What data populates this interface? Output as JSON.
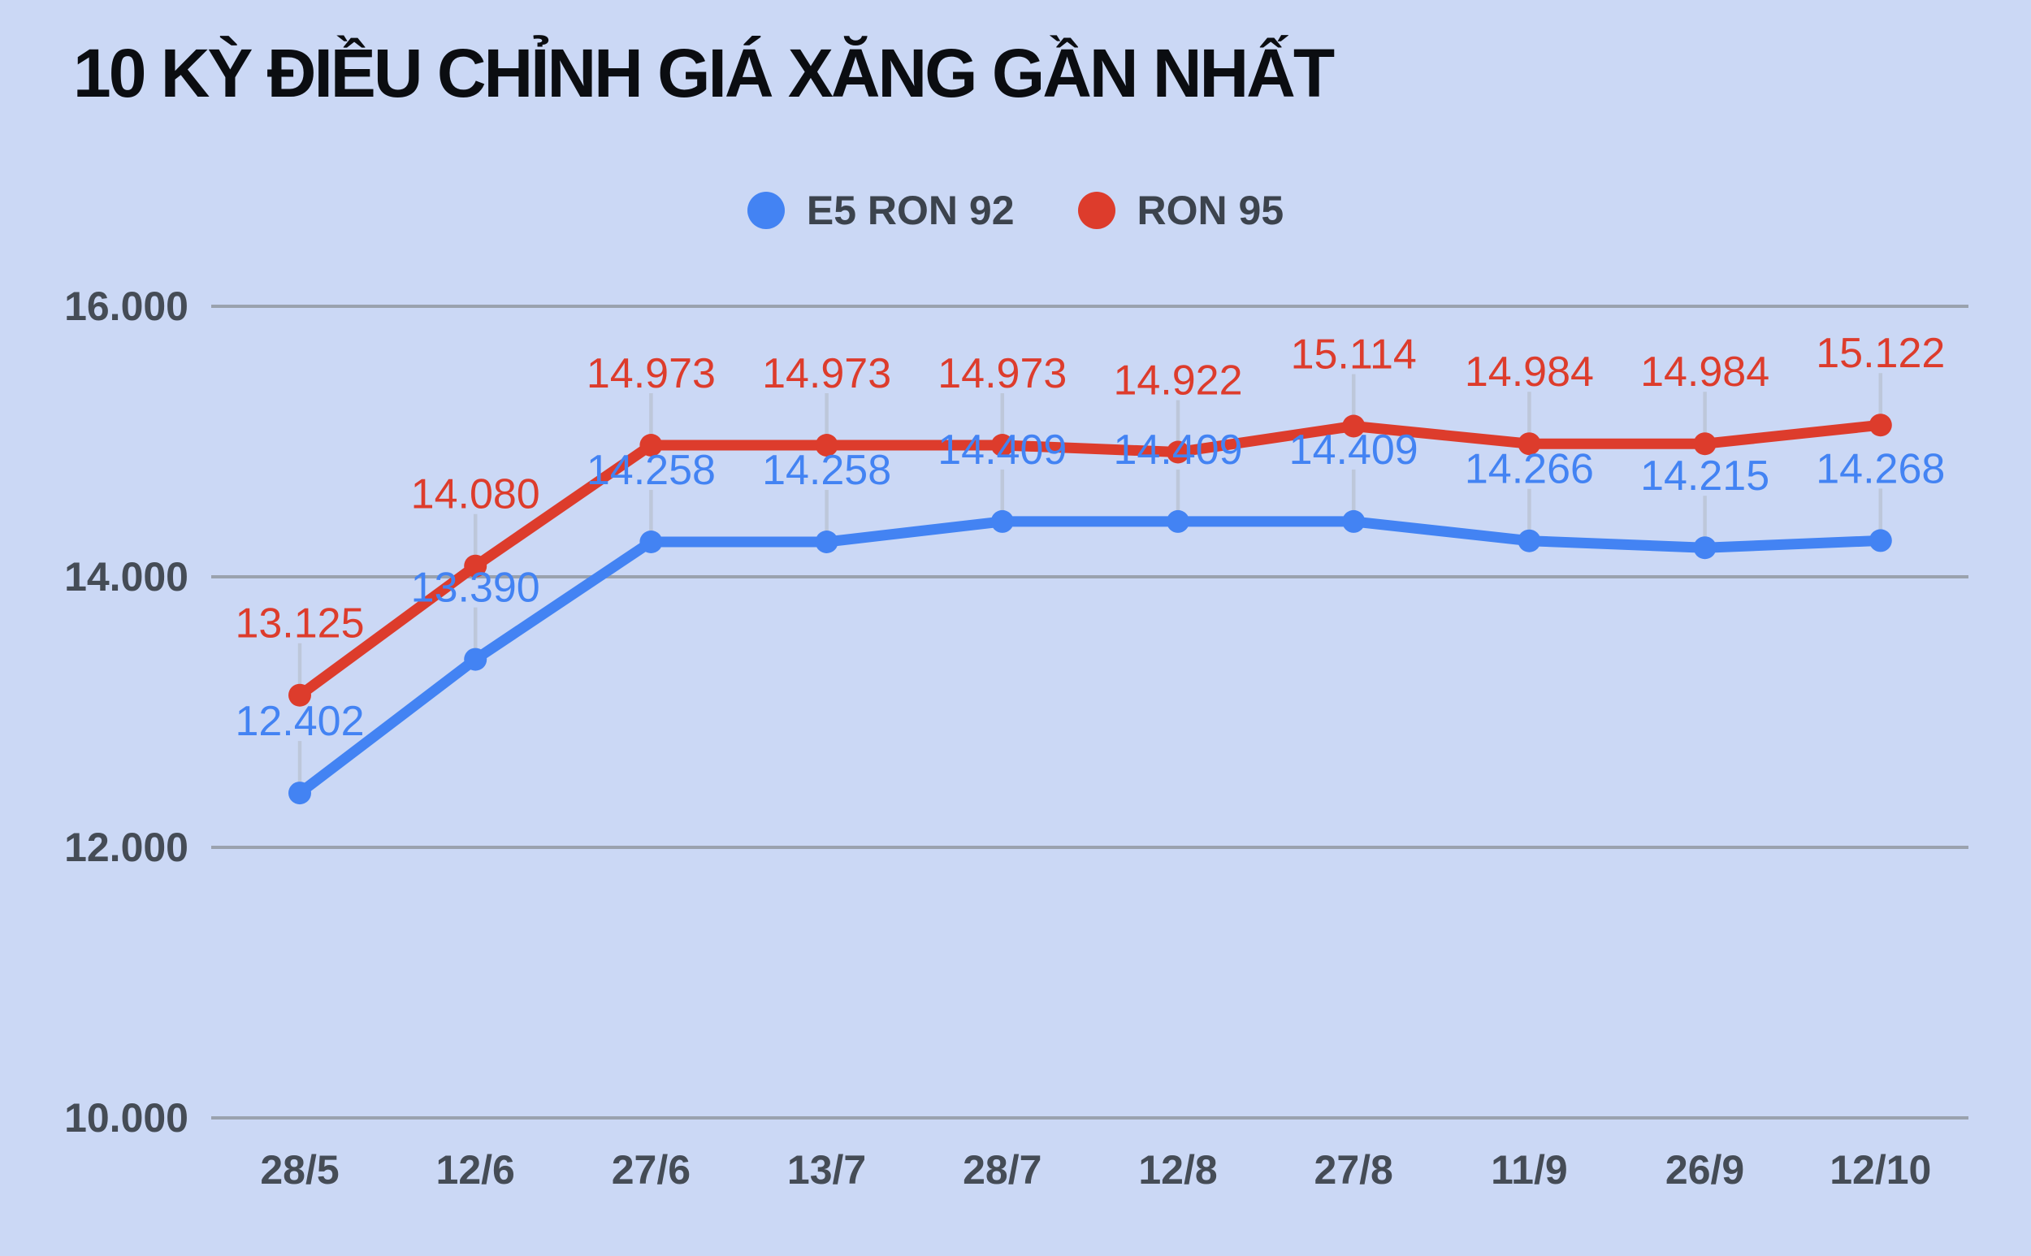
{
  "title": "10 KỲ ĐIỀU CHỈNH GIÁ XĂNG GẦN NHẤT",
  "legend": {
    "items": [
      {
        "label": "E5 RON 92",
        "color": "#4383f3"
      },
      {
        "label": "RON 95",
        "color": "#dd3c2c"
      }
    ]
  },
  "colors": {
    "background": "#cbd8f5",
    "title_text": "#0b0d11",
    "legend_text": "#3c434d",
    "axis_text": "#454c56",
    "grid_line": "#9aa2ae",
    "callout_line": "#bdc7da",
    "series_blue": "#4383f3",
    "series_red": "#dd3c2c"
  },
  "chart_data": {
    "type": "line",
    "title": "10 KỲ ĐIỀU CHỈNH GIÁ XĂNG GẦN NHẤT",
    "xlabel": "",
    "ylabel": "",
    "categories": [
      "28/5",
      "12/6",
      "27/6",
      "13/7",
      "28/7",
      "12/8",
      "27/8",
      "11/9",
      "26/9",
      "12/10"
    ],
    "series": [
      {
        "name": "E5 RON 92",
        "color": "#4383f3",
        "values": [
          12402,
          13390,
          14258,
          14258,
          14409,
          14409,
          14409,
          14266,
          14215,
          14268
        ],
        "labels": [
          "12.402",
          "13.390",
          "14.258",
          "14.258",
          "14.409",
          "14.409",
          "14.409",
          "14.266",
          "14.215",
          "14.268"
        ]
      },
      {
        "name": "RON 95",
        "color": "#dd3c2c",
        "values": [
          13125,
          14080,
          14973,
          14973,
          14973,
          14922,
          15114,
          14984,
          14984,
          15122
        ],
        "labels": [
          "13.125",
          "14.080",
          "14.973",
          "14.973",
          "14.973",
          "14.922",
          "15.114",
          "14.984",
          "14.984",
          "15.122"
        ]
      }
    ],
    "y_ticks": [
      {
        "value": 16000,
        "label": "16.000"
      },
      {
        "value": 14000,
        "label": "14.000"
      },
      {
        "value": 12000,
        "label": "12.000"
      },
      {
        "value": 10000,
        "label": "10.000"
      }
    ],
    "ylim": [
      10000,
      16000
    ],
    "grid": "horizontal",
    "legend_position": "top",
    "point_labels": "visible"
  }
}
